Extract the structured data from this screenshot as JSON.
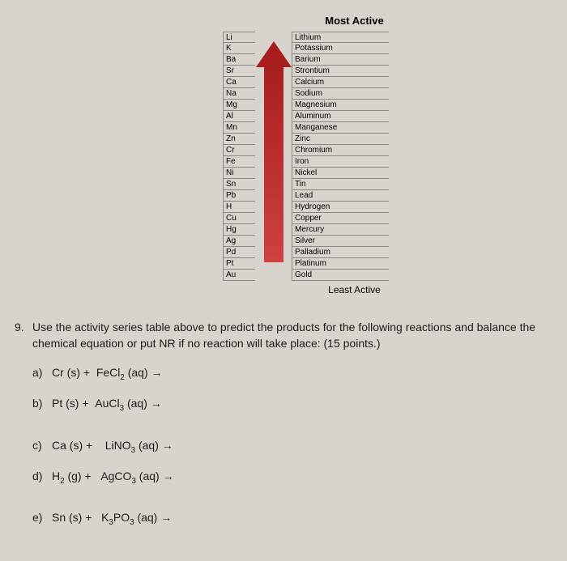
{
  "table": {
    "title": "Most Active",
    "bottomLabel": "Least Active",
    "rows": [
      {
        "symbol": "Li",
        "name": "Lithium"
      },
      {
        "symbol": "K",
        "name": "Potassium"
      },
      {
        "symbol": "Ba",
        "name": "Barium"
      },
      {
        "symbol": "Sr",
        "name": "Strontium"
      },
      {
        "symbol": "Ca",
        "name": "Calcium"
      },
      {
        "symbol": "Na",
        "name": "Sodium"
      },
      {
        "symbol": "Mg",
        "name": "Magnesium"
      },
      {
        "symbol": "Al",
        "name": "Aluminum"
      },
      {
        "symbol": "Mn",
        "name": "Manganese"
      },
      {
        "symbol": "Zn",
        "name": "Zinc"
      },
      {
        "symbol": "Cr",
        "name": "Chromium"
      },
      {
        "symbol": "Fe",
        "name": "Iron"
      },
      {
        "symbol": "Ni",
        "name": "Nickel"
      },
      {
        "symbol": "Sn",
        "name": "Tin"
      },
      {
        "symbol": "Pb",
        "name": "Lead"
      },
      {
        "symbol": "H",
        "name": "Hydrogen"
      },
      {
        "symbol": "Cu",
        "name": "Copper"
      },
      {
        "symbol": "Hg",
        "name": "Mercury"
      },
      {
        "symbol": "Ag",
        "name": "Silver"
      },
      {
        "symbol": "Pd",
        "name": "Palladium"
      },
      {
        "symbol": "Pt",
        "name": "Platinum"
      },
      {
        "symbol": "Au",
        "name": "Gold"
      }
    ],
    "arrowColor": "#a81e1e"
  },
  "question": {
    "number": "9.",
    "text": "Use the activity series table above to predict the products for the following reactions and balance the chemical equation or put NR if no reaction will take place: (15 points.)",
    "subs": [
      {
        "label": "a)",
        "html": "Cr (s) + &nbsp;FeCl<sub>2</sub> (aq) →"
      },
      {
        "label": "b)",
        "html": "Pt (s) + &nbsp;AuCl<sub>3</sub> (aq) →"
      },
      {
        "label": "c)",
        "html": "Ca (s) + &nbsp;&nbsp;&nbsp;LiNO<sub>3</sub> (aq) →",
        "gap": true
      },
      {
        "label": "d)",
        "html": "H<sub>2</sub> (g) + &nbsp;&nbsp;AgCO<sub>3</sub> (aq) →"
      },
      {
        "label": "e)",
        "html": "Sn (s) + &nbsp;&nbsp;K<sub>3</sub>PO<sub>3</sub> (aq) →",
        "gap": true
      }
    ]
  }
}
